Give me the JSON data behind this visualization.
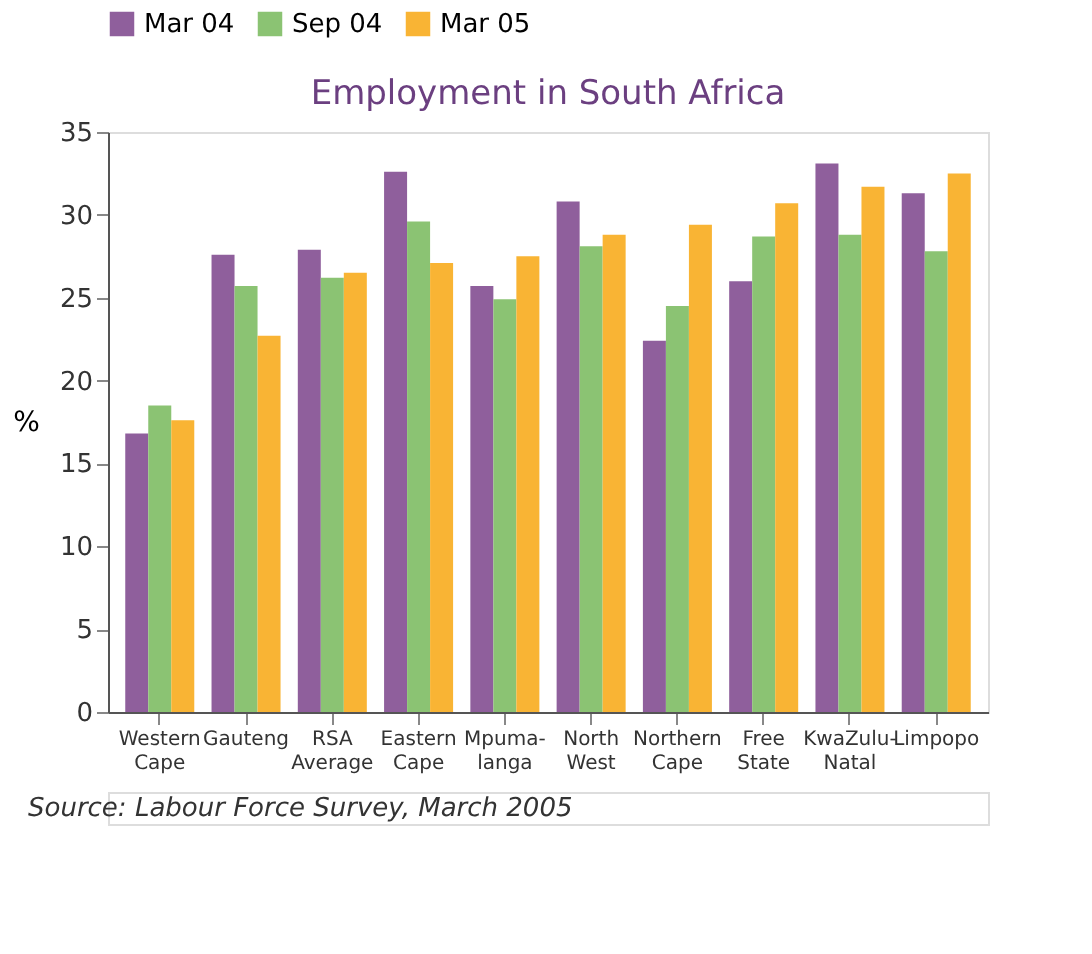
{
  "chart_data": {
    "type": "bar",
    "title": "Employment in South Africa",
    "ylabel": "%",
    "categories": [
      "Western\nCape",
      "Gauteng",
      "RSA\nAverage",
      "Eastern\nCape",
      "Mpuma-\nlanga",
      "North\nWest",
      "Northern\nCape",
      "Free\nState",
      "KwaZulu-\nNatal",
      "Limpopo"
    ],
    "series": [
      {
        "name": "Mar 04",
        "color": "#8f5f9c",
        "values": [
          16.8,
          27.6,
          27.9,
          32.6,
          25.7,
          30.8,
          22.4,
          26.0,
          33.1,
          31.3
        ]
      },
      {
        "name": "Sep 04",
        "color": "#8bc373",
        "values": [
          18.5,
          25.7,
          26.2,
          29.6,
          24.9,
          28.1,
          24.5,
          28.7,
          28.8,
          27.8
        ]
      },
      {
        "name": "Mar 05",
        "color": "#f9b434",
        "values": [
          17.6,
          22.7,
          26.5,
          27.1,
          27.5,
          28.8,
          29.4,
          30.7,
          31.7,
          32.5
        ]
      }
    ],
    "ylim": [
      0,
      35
    ],
    "yticks": [
      0,
      5,
      10,
      15,
      20,
      25,
      30,
      35
    ],
    "grid": false,
    "legend": "top",
    "annotations": [
      "Source: Labour Force Survey, March 2005"
    ]
  }
}
